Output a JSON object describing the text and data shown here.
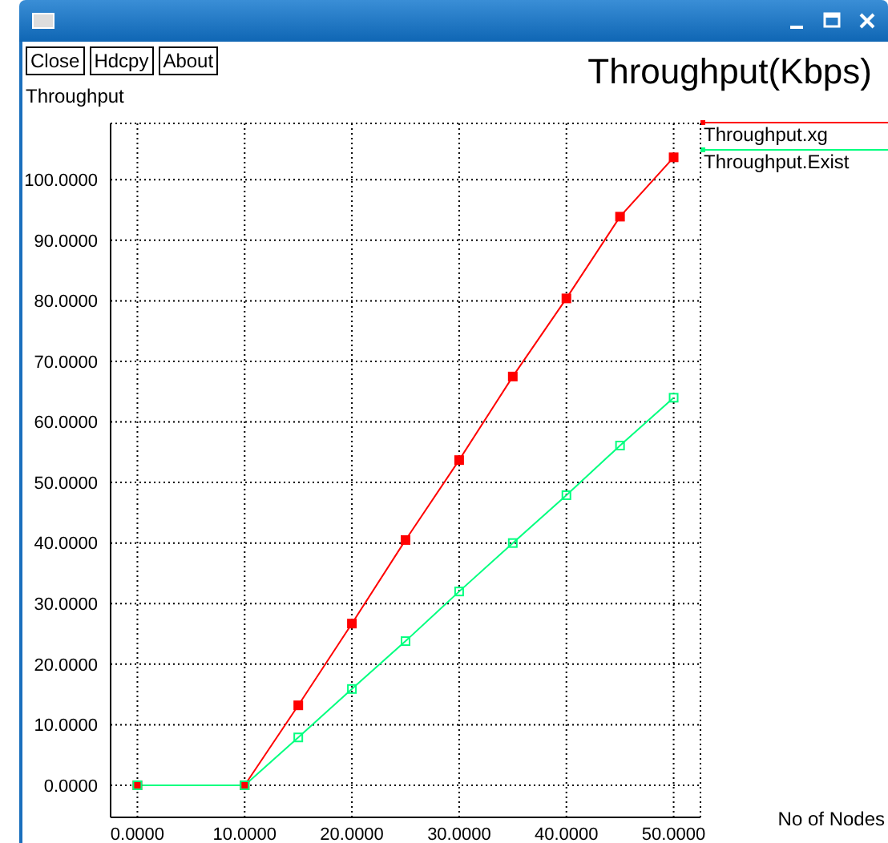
{
  "chart_data": {
    "type": "line",
    "title": "Throughput(Kbps)",
    "ylabel": "Throughput",
    "annotations": [
      "Close",
      "Hdcpy",
      "About",
      "No of Nodes"
    ],
    "xlim": [
      -2.5,
      52.5
    ],
    "ylim": [
      -5.3,
      109.3
    ],
    "xticks": [
      {
        "value": 0,
        "label": "0.0000"
      },
      {
        "value": 10,
        "label": "10.0000"
      },
      {
        "value": 20,
        "label": "20.0000"
      },
      {
        "value": 30,
        "label": "30.0000"
      },
      {
        "value": 40,
        "label": "40.0000"
      },
      {
        "value": 50,
        "label": "50.0000"
      }
    ],
    "yticks": [
      {
        "value": 0,
        "label": "0.0000"
      },
      {
        "value": 10,
        "label": "10.0000"
      },
      {
        "value": 20,
        "label": "20.0000"
      },
      {
        "value": 30,
        "label": "30.0000"
      },
      {
        "value": 40,
        "label": "40.0000"
      },
      {
        "value": 50,
        "label": "50.0000"
      },
      {
        "value": 60,
        "label": "60.0000"
      },
      {
        "value": 70,
        "label": "70.0000"
      },
      {
        "value": 80,
        "label": "80.0000"
      },
      {
        "value": 90,
        "label": "90.0000"
      },
      {
        "value": 100,
        "label": "100.0000"
      }
    ],
    "x": [
      0,
      10,
      15,
      20,
      25,
      30,
      35,
      40,
      45,
      50
    ],
    "series": [
      {
        "name": "Throughput.xg",
        "color": "#ff0000",
        "values": [
          0,
          0,
          13.2,
          26.7,
          40.5,
          53.7,
          67.5,
          80.4,
          93.9,
          103.7
        ]
      },
      {
        "name": "Throughput.Exist",
        "color": "#00ff7f",
        "values": [
          0,
          0,
          7.9,
          15.9,
          23.8,
          32,
          40,
          47.9,
          56.1,
          64
        ]
      }
    ],
    "grid": true,
    "legend": "top right",
    "marker": "square",
    "line_style": "solid"
  }
}
